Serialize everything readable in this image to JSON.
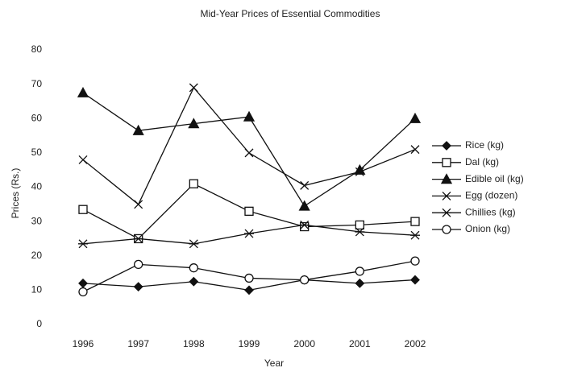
{
  "chart_data": {
    "type": "line",
    "title": "Mid-Year Prices of Essential Commodities",
    "xlabel": "Year",
    "ylabel": "Prices (Rs.)",
    "categories": [
      "1996",
      "1997",
      "1998",
      "1999",
      "2000",
      "2001",
      "2002"
    ],
    "ylim": [
      0,
      80
    ],
    "yticks": [
      0,
      10,
      20,
      30,
      40,
      50,
      60,
      70,
      80
    ],
    "grid": false,
    "legend": "right",
    "series": [
      {
        "name": "Rice (kg)",
        "color": "#111111",
        "marker": "diamond",
        "values": [
          12,
          11,
          12.5,
          10,
          13,
          12,
          13
        ]
      },
      {
        "name": "Dal (kg)",
        "color": "#111111",
        "marker": "square",
        "values": [
          33.5,
          25,
          41,
          33,
          28.5,
          29,
          30
        ]
      },
      {
        "name": "Edible oil (kg)",
        "color": "#111111",
        "marker": "triangle",
        "values": [
          67.5,
          56.5,
          58.5,
          60.5,
          34.5,
          45,
          60
        ]
      },
      {
        "name": "Egg (dozen)",
        "color": "#111111",
        "marker": "x",
        "values": [
          48,
          35,
          69,
          50,
          40.5,
          44.5,
          51
        ]
      },
      {
        "name": "Chillies (kg)",
        "color": "#111111",
        "marker": "asterisk",
        "values": [
          23.5,
          25,
          23.5,
          26.5,
          29,
          27,
          26
        ]
      },
      {
        "name": "Onion (kg)",
        "color": "#111111",
        "marker": "circle",
        "values": [
          9.5,
          17.5,
          16.5,
          13.5,
          13,
          15.5,
          18.5
        ]
      }
    ]
  }
}
